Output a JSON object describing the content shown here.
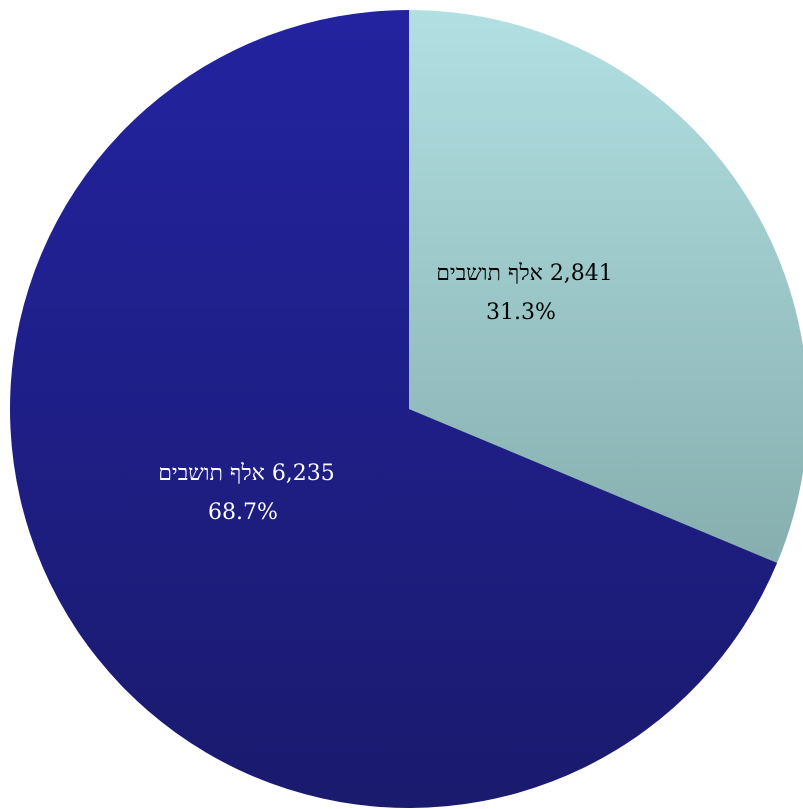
{
  "chart_data": {
    "type": "pie",
    "title": "",
    "start_angle_deg": 0,
    "direction": "clockwise",
    "slices": [
      {
        "value": 2841,
        "percent": 31.3,
        "label_line1": "2,841 אלף תושבים",
        "label_line2": "31.3%",
        "color_top": "#b2e0e2",
        "color_bottom": "#86aeaf",
        "label_color": "#000000"
      },
      {
        "value": 6235,
        "percent": 68.7,
        "label_line1": "6,235 אלף תושבים",
        "label_line2": "68.7%",
        "color_top": "#2323a0",
        "color_bottom": "#1a1a6e",
        "label_color": "#ffffff"
      }
    ]
  }
}
